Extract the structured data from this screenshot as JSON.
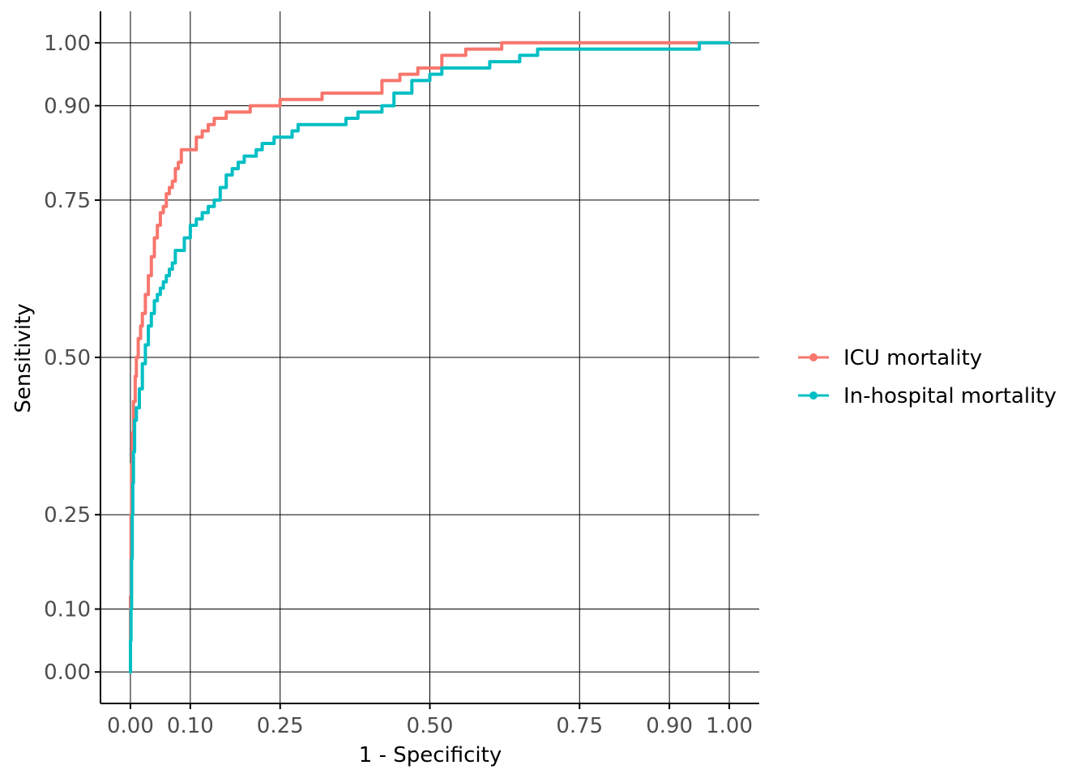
{
  "chart_data": {
    "type": "line",
    "xlabel": "1 - Specificity",
    "ylabel": "Sensitivity",
    "xlim": [
      -0.05,
      1.05
    ],
    "ylim": [
      -0.05,
      1.05
    ],
    "x_ticks": [
      0.0,
      0.1,
      0.25,
      0.5,
      0.75,
      0.9,
      1.0
    ],
    "x_tick_labels": [
      "0.00",
      "0.10",
      "0.25",
      "0.50",
      "0.75",
      "0.90",
      "1.00"
    ],
    "y_ticks": [
      0.0,
      0.1,
      0.25,
      0.5,
      0.75,
      0.9,
      1.0
    ],
    "y_tick_labels": [
      "0.00",
      "0.10",
      "0.25",
      "0.50",
      "0.75",
      "0.90",
      "1.00"
    ],
    "grid": true,
    "legend_position": "right",
    "series": [
      {
        "name": "ICU mortality",
        "color": "#F8766D",
        "x": [
          0.0,
          0.001,
          0.002,
          0.003,
          0.005,
          0.008,
          0.01,
          0.013,
          0.017,
          0.02,
          0.025,
          0.03,
          0.035,
          0.04,
          0.045,
          0.05,
          0.055,
          0.06,
          0.065,
          0.07,
          0.075,
          0.08,
          0.085,
          0.09,
          0.1,
          0.11,
          0.12,
          0.13,
          0.14,
          0.15,
          0.16,
          0.17,
          0.2,
          0.22,
          0.25,
          0.27,
          0.29,
          0.32,
          0.36,
          0.39,
          0.42,
          0.45,
          0.48,
          0.52,
          0.56,
          0.6,
          0.62,
          0.63,
          0.7,
          0.8,
          0.9,
          1.0
        ],
        "y": [
          0.0,
          0.12,
          0.25,
          0.33,
          0.38,
          0.43,
          0.47,
          0.5,
          0.53,
          0.55,
          0.57,
          0.6,
          0.63,
          0.66,
          0.69,
          0.71,
          0.73,
          0.74,
          0.76,
          0.77,
          0.78,
          0.8,
          0.81,
          0.83,
          0.83,
          0.83,
          0.85,
          0.86,
          0.87,
          0.88,
          0.88,
          0.89,
          0.89,
          0.9,
          0.9,
          0.91,
          0.91,
          0.91,
          0.92,
          0.92,
          0.92,
          0.94,
          0.95,
          0.96,
          0.98,
          0.99,
          0.99,
          1.0,
          1.0,
          1.0,
          1.0,
          1.0
        ]
      },
      {
        "name": "In-hospital mortality",
        "color": "#00BFC4",
        "x": [
          0.0,
          0.001,
          0.002,
          0.003,
          0.004,
          0.005,
          0.007,
          0.01,
          0.015,
          0.02,
          0.025,
          0.03,
          0.035,
          0.04,
          0.045,
          0.05,
          0.055,
          0.06,
          0.065,
          0.07,
          0.075,
          0.08,
          0.09,
          0.1,
          0.11,
          0.12,
          0.13,
          0.14,
          0.15,
          0.16,
          0.17,
          0.18,
          0.19,
          0.21,
          0.22,
          0.24,
          0.27,
          0.28,
          0.3,
          0.33,
          0.36,
          0.38,
          0.4,
          0.42,
          0.44,
          0.47,
          0.5,
          0.52,
          0.55,
          0.6,
          0.62,
          0.65,
          0.68,
          0.75,
          0.8,
          0.9,
          0.95,
          1.0
        ],
        "y": [
          0.0,
          0.05,
          0.1,
          0.18,
          0.25,
          0.3,
          0.35,
          0.4,
          0.42,
          0.45,
          0.49,
          0.52,
          0.55,
          0.57,
          0.59,
          0.6,
          0.61,
          0.62,
          0.63,
          0.64,
          0.65,
          0.67,
          0.67,
          0.69,
          0.71,
          0.72,
          0.73,
          0.74,
          0.75,
          0.77,
          0.79,
          0.8,
          0.81,
          0.82,
          0.83,
          0.84,
          0.85,
          0.86,
          0.87,
          0.87,
          0.87,
          0.88,
          0.89,
          0.89,
          0.9,
          0.92,
          0.94,
          0.95,
          0.96,
          0.96,
          0.97,
          0.97,
          0.98,
          0.99,
          0.99,
          0.99,
          0.99,
          1.0
        ]
      }
    ]
  }
}
